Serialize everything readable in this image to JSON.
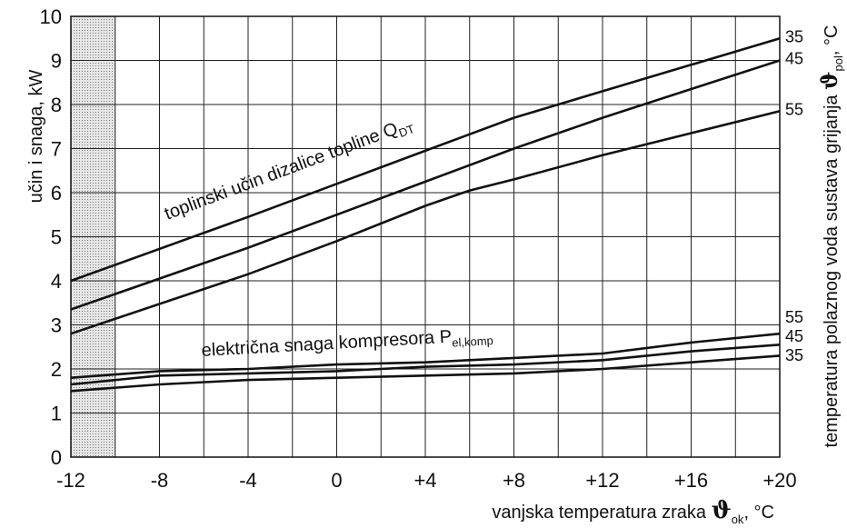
{
  "chart_data": {
    "type": "line",
    "y_axis_label": "učin i snaga, kW",
    "x_axis_label": {
      "text": "vanjska temperatura zraka",
      "symbol": "ϑ",
      "subscript": "ok",
      "unit": ", °C"
    },
    "right_axis_label": {
      "text": "temperatura polaznog voda sustava grijanja",
      "symbol": "ϑ",
      "subscript": "pol",
      "unit": ", °C"
    },
    "xlim": [
      -12,
      20
    ],
    "ylim": [
      0,
      10
    ],
    "x_ticks": [
      "-12",
      "-8",
      "-4",
      "0",
      "+4",
      "+8",
      "+12",
      "+16",
      "+20"
    ],
    "x_tick_values": [
      -12,
      -8,
      -4,
      0,
      4,
      8,
      12,
      16,
      20
    ],
    "y_ticks": [
      "0",
      "1",
      "2",
      "3",
      "4",
      "5",
      "6",
      "7",
      "8",
      "9",
      "10"
    ],
    "grid": true,
    "shaded_region": {
      "x": [
        -12,
        -10
      ]
    },
    "annotations": {
      "heat_output": {
        "text": "toplinski učin dizalice topline Q",
        "sub": "DT"
      },
      "electric_power": {
        "text": "električna snaga kompresora P",
        "sub": "el,komp"
      }
    },
    "series": [
      {
        "name": "35",
        "group": "heat_output",
        "x": [
          -12,
          -4,
          0,
          4,
          8,
          12,
          16,
          20
        ],
        "y": [
          4.0,
          5.45,
          6.2,
          6.95,
          7.7,
          8.3,
          8.9,
          9.5
        ]
      },
      {
        "name": "45",
        "group": "heat_output",
        "x": [
          -12,
          -4,
          0,
          4,
          8,
          12,
          16,
          20
        ],
        "y": [
          3.35,
          4.75,
          5.5,
          6.25,
          7.0,
          7.7,
          8.35,
          9.0
        ]
      },
      {
        "name": "55",
        "group": "heat_output",
        "x": [
          -12,
          -4,
          0,
          4,
          6,
          8,
          12,
          16,
          20
        ],
        "y": [
          2.8,
          4.15,
          4.9,
          5.7,
          6.05,
          6.3,
          6.85,
          7.35,
          7.85
        ]
      },
      {
        "name": "55",
        "group": "electric_power",
        "x": [
          -12,
          -8,
          -4,
          0,
          4,
          8,
          12,
          16,
          20
        ],
        "y": [
          1.8,
          1.95,
          2.0,
          2.1,
          2.15,
          2.25,
          2.35,
          2.6,
          2.8
        ]
      },
      {
        "name": "45",
        "group": "electric_power",
        "x": [
          -12,
          -8,
          -4,
          0,
          4,
          8,
          12,
          16,
          20
        ],
        "y": [
          1.65,
          1.85,
          1.9,
          1.95,
          2.05,
          2.1,
          2.2,
          2.4,
          2.55
        ]
      },
      {
        "name": "35",
        "group": "electric_power",
        "x": [
          -12,
          -8,
          -4,
          0,
          4,
          8,
          12,
          16,
          20
        ],
        "y": [
          1.5,
          1.65,
          1.75,
          1.8,
          1.85,
          1.9,
          2.0,
          2.15,
          2.3
        ]
      }
    ]
  }
}
